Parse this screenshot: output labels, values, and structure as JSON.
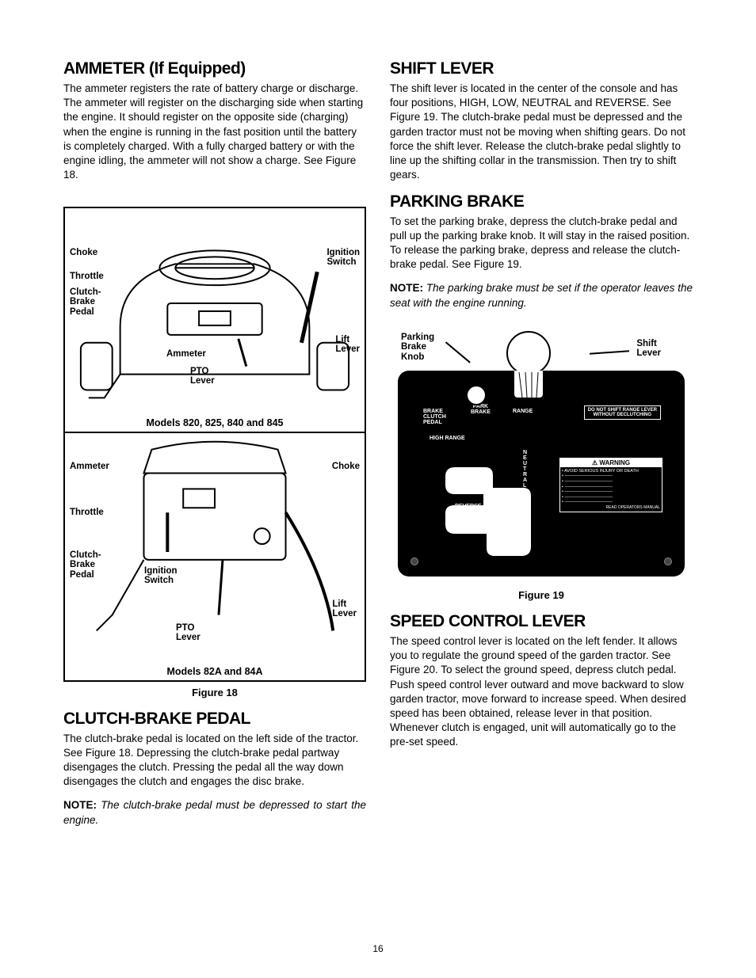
{
  "page_number": "16",
  "left_column": {
    "ammeter": {
      "heading": "AMMETER (If Equipped)",
      "body": "The ammeter registers the rate of battery charge or discharge. The ammeter will register on the discharging side when starting the engine. It should register on the opposite side (charging) when the engine is running in the fast position until the battery is completely charged. With a fully charged battery or with the engine idling, the ammeter will not show a charge. See Figure 18."
    },
    "figure18": {
      "caption": "Figure 18",
      "top_models": "Models 820, 825, 840 and 845",
      "bottom_models": "Models 82A and 84A",
      "labels_top": {
        "choke": "Choke",
        "ignition": "Ignition\nSwitch",
        "throttle": "Throttle",
        "clutch": "Clutch-\nBrake\nPedal",
        "ammeter": "Ammeter",
        "lift": "Lift\nLever",
        "pto": "PTO\nLever"
      },
      "labels_bottom": {
        "ammeter": "Ammeter",
        "choke": "Choke",
        "throttle": "Throttle",
        "clutch": "Clutch-\nBrake\nPedal",
        "ignition": "Ignition\nSwitch",
        "lift": "Lift\nLever",
        "pto": "PTO\nLever"
      }
    },
    "clutch": {
      "heading": "CLUTCH-BRAKE PEDAL",
      "body": "The clutch-brake pedal is located on the left side of the tractor. See Figure 18. Depressing the clutch-brake pedal partway disengages the clutch. Pressing the pedal all the way down disengages the clutch and engages the disc brake.",
      "note_label": "NOTE:",
      "note_body": "The clutch-brake pedal must be depressed to start the engine."
    }
  },
  "right_column": {
    "shift": {
      "heading": "SHIFT LEVER",
      "body": "The shift lever is located in the center of the console and has four positions, HIGH, LOW, NEUTRAL and REVERSE. See Figure 19. The clutch-brake pedal must be depressed and the garden tractor must not be moving when shifting gears. Do not force the shift lever. Release the clutch-brake pedal slightly to line up the shifting collar in the transmission. Then try to shift gears."
    },
    "parking": {
      "heading": "PARKING BRAKE",
      "body": "To set the parking brake, depress the clutch-brake pedal and pull up the parking brake knob. It will stay in the raised position. To release the parking brake, depress and release the clutch-brake pedal. See Figure 19.",
      "note_label": "NOTE:",
      "note_body": "The parking brake must be set if the operator leaves the seat with the engine running."
    },
    "figure19": {
      "caption": "Figure 19",
      "labels": {
        "parking_knob": "Parking\nBrake\nKnob",
        "shift_lever": "Shift\nLever"
      },
      "panel": {
        "brake_clutch": "BRAKE\nCLUTCH\nPEDAL",
        "park_brake": "PARK\nBRAKE",
        "high": "HIGH RANGE",
        "range": "RANGE",
        "neutral": "N\nE\nU\nT\nR\nA\nL",
        "reverse": "REVERSE",
        "warn_title": "⚠ WARNING",
        "do_not": "DO NOT SHIFT RANGE LEVER\nWITHOUT DECLUTCHING"
      }
    },
    "speed": {
      "heading": "SPEED CONTROL LEVER",
      "body": "The speed control lever is located on the left fender. It allows you to regulate the ground speed of the garden tractor. See Figure 20. To select the ground speed, depress clutch pedal. Push speed control lever outward and move backward to slow garden tractor, move forward to increase speed. When desired speed has been obtained, release lever in that position. Whenever clutch is engaged, unit will automatically go to the pre-set speed."
    }
  }
}
